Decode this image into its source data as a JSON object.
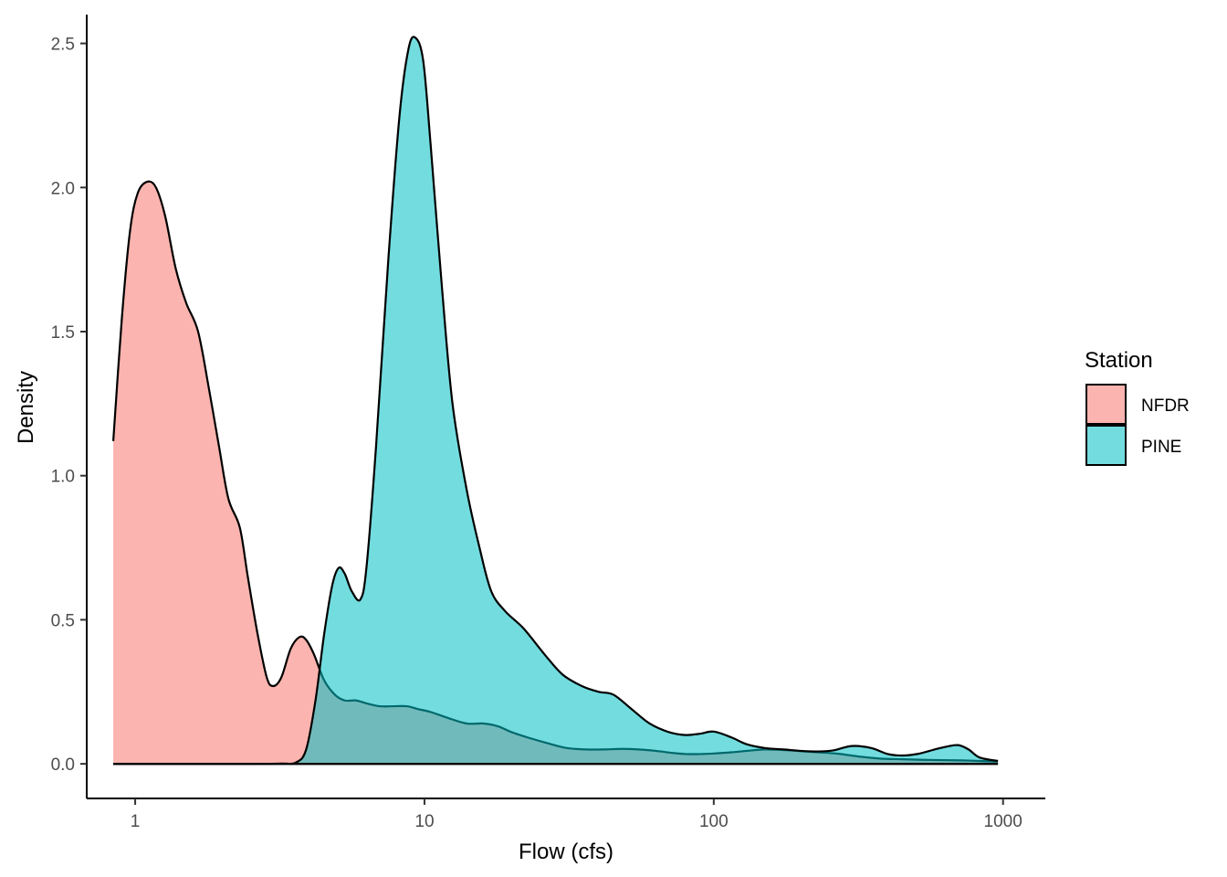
{
  "chart_data": {
    "type": "area",
    "xlabel": "Flow (cfs)",
    "ylabel": "Density",
    "x_scale": "log10",
    "xlim": [
      0.68,
      1400
    ],
    "ylim": [
      -0.12,
      2.6
    ],
    "x_ticks": [
      1,
      10,
      100,
      1000
    ],
    "x_tick_labels": [
      "1",
      "10",
      "100",
      "1000"
    ],
    "y_ticks": [
      0,
      0.5,
      1,
      1.5,
      2,
      2.5
    ],
    "y_tick_labels": [
      "0.0",
      "0.5",
      "1.0",
      "1.5",
      "2.0",
      "2.5"
    ],
    "grid": false,
    "legend": {
      "title": "Station",
      "position": "right"
    },
    "series": [
      {
        "name": "NFDR",
        "color": "#F8766D",
        "x": [
          0.84,
          0.9,
          0.96,
          1.02,
          1.1,
          1.18,
          1.27,
          1.38,
          1.5,
          1.65,
          1.8,
          1.95,
          2.1,
          2.3,
          2.45,
          2.65,
          2.85,
          3.0,
          3.2,
          3.45,
          3.7,
          3.9,
          4.15,
          4.5,
          4.9,
          5.3,
          5.8,
          6.3,
          7.0,
          7.8,
          8.7,
          9.5,
          10.5,
          12,
          14,
          16,
          18,
          20,
          23,
          27,
          31,
          36,
          42,
          48,
          55,
          63,
          72,
          80,
          90,
          100,
          115,
          130,
          150,
          175,
          200,
          230,
          270,
          320,
          380,
          450,
          530,
          620,
          720,
          830,
          960
        ],
        "y": [
          1.12,
          1.55,
          1.85,
          1.98,
          2.02,
          2.0,
          1.9,
          1.72,
          1.6,
          1.5,
          1.3,
          1.1,
          0.92,
          0.82,
          0.65,
          0.45,
          0.3,
          0.27,
          0.3,
          0.4,
          0.44,
          0.43,
          0.38,
          0.29,
          0.24,
          0.22,
          0.22,
          0.21,
          0.2,
          0.2,
          0.2,
          0.19,
          0.18,
          0.16,
          0.14,
          0.14,
          0.13,
          0.11,
          0.09,
          0.07,
          0.055,
          0.05,
          0.05,
          0.052,
          0.05,
          0.045,
          0.038,
          0.034,
          0.034,
          0.036,
          0.04,
          0.045,
          0.05,
          0.048,
          0.044,
          0.04,
          0.035,
          0.025,
          0.018,
          0.016,
          0.014,
          0.013,
          0.012,
          0.01,
          0.008
        ]
      },
      {
        "name": "PINE",
        "color": "#00BFC4",
        "x": [
          0.84,
          1.5,
          2.5,
          3.2,
          3.6,
          3.9,
          4.2,
          4.5,
          4.8,
          5.05,
          5.3,
          5.6,
          6.0,
          6.3,
          6.8,
          7.5,
          8.2,
          8.8,
          9.3,
          9.9,
          10.5,
          11.5,
          12.5,
          14,
          15.5,
          17,
          19,
          22,
          26,
          30,
          35,
          40,
          45,
          52,
          60,
          70,
          80,
          90,
          100,
          115,
          130,
          150,
          175,
          200,
          230,
          260,
          300,
          350,
          400,
          450,
          510,
          580,
          640,
          700,
          760,
          830,
          960
        ],
        "y": [
          0,
          0,
          0,
          0.001,
          0.005,
          0.05,
          0.22,
          0.45,
          0.62,
          0.68,
          0.66,
          0.6,
          0.57,
          0.68,
          1.1,
          1.75,
          2.25,
          2.48,
          2.52,
          2.44,
          2.15,
          1.65,
          1.25,
          0.95,
          0.75,
          0.6,
          0.53,
          0.47,
          0.38,
          0.31,
          0.27,
          0.25,
          0.24,
          0.19,
          0.14,
          0.11,
          0.1,
          0.105,
          0.112,
          0.092,
          0.068,
          0.055,
          0.05,
          0.045,
          0.043,
          0.047,
          0.062,
          0.055,
          0.034,
          0.029,
          0.035,
          0.05,
          0.06,
          0.065,
          0.05,
          0.022,
          0.01
        ]
      }
    ]
  }
}
